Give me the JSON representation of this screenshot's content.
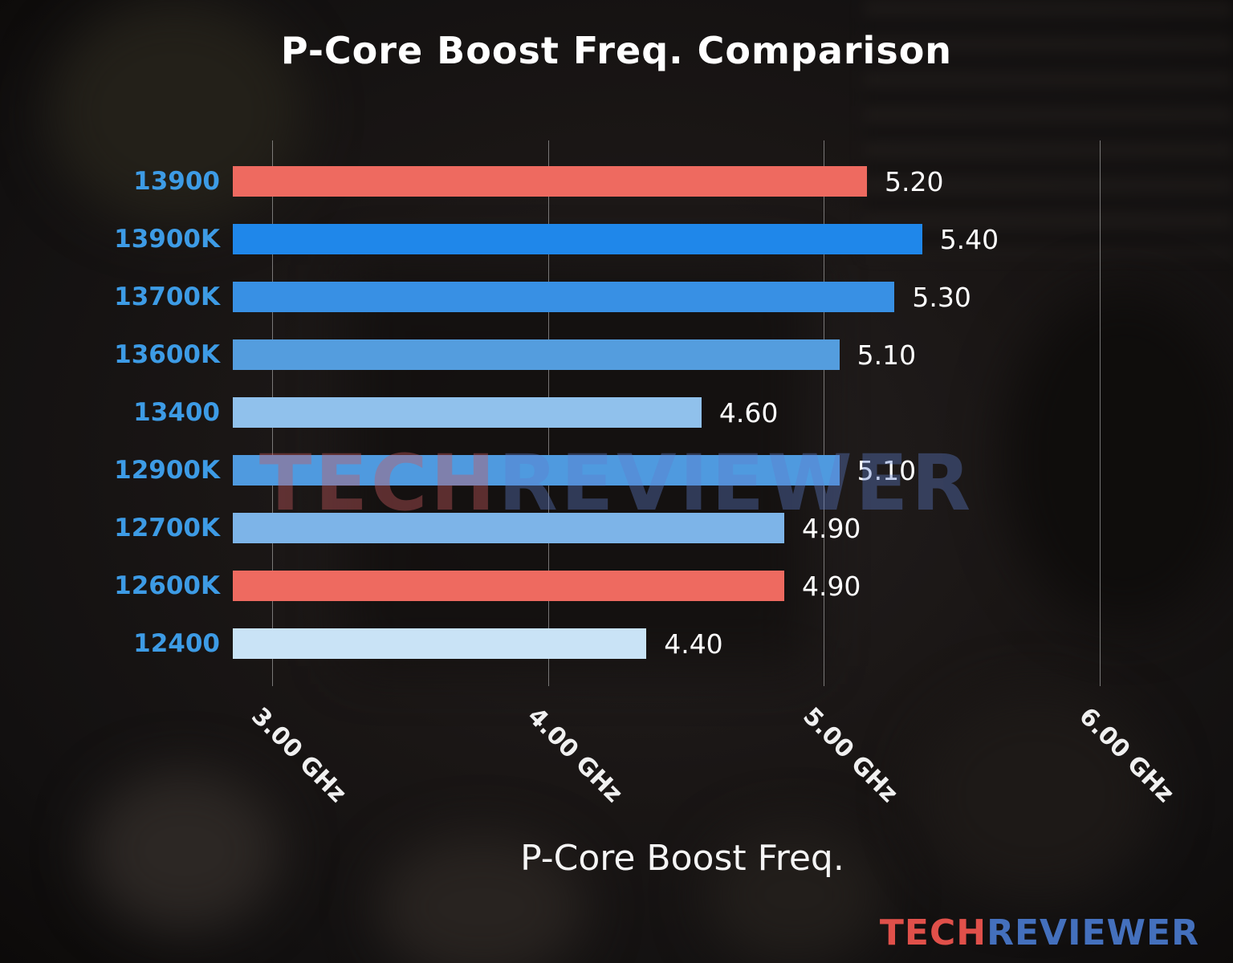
{
  "chart_data": {
    "type": "bar",
    "orientation": "horizontal",
    "title": "P-Core Boost Freq. Comparison",
    "xlabel": "P-Core Boost Freq.",
    "ylabel": "",
    "categories": [
      "13900",
      "13900K",
      "13700K",
      "13600K",
      "13400",
      "12900K",
      "12700K",
      "12600K",
      "12400"
    ],
    "values": [
      5.2,
      5.4,
      5.3,
      5.1,
      4.6,
      5.1,
      4.9,
      4.9,
      4.4
    ],
    "value_labels": [
      "5.20",
      "5.40",
      "5.30",
      "5.10",
      "4.60",
      "5.10",
      "4.90",
      "4.90",
      "4.40"
    ],
    "bar_colors": [
      "#ee6a60",
      "#1f87ea",
      "#3890e4",
      "#549dde",
      "#90c1ec",
      "#4f9adf",
      "#7db4e8",
      "#ee6a60",
      "#c9e3f6"
    ],
    "x_ticks": [
      "3.00 GHz",
      "4.00 GHz",
      "5.00 GHz",
      "6.00 GHz"
    ],
    "x_tick_values": [
      3.0,
      4.0,
      5.0,
      6.0
    ],
    "xlim": [
      2.9,
      6.35
    ],
    "grid": true,
    "legend": "none",
    "category_label_color": "#3d9be5",
    "value_label_color": "#ffffff",
    "grid_color": "#c8c8c8"
  },
  "watermark": {
    "part1": "TECH",
    "part2": "REVIEWER"
  },
  "logo": {
    "part1": "TECH",
    "part2": "REVIEWER",
    "color1": "#e0504a",
    "color2": "#4470bd"
  }
}
